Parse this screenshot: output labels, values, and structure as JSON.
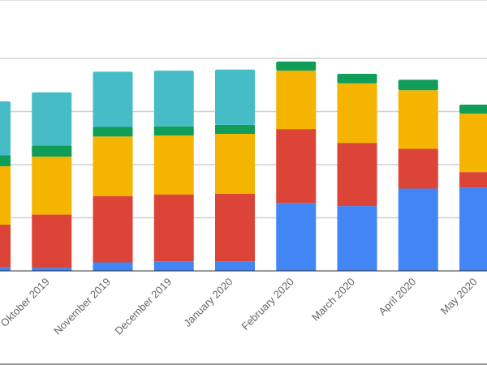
{
  "chart_data": {
    "type": "bar",
    "stacked": true,
    "title": "",
    "xlabel": "",
    "ylabel": "",
    "ylim": [
      0,
      4
    ],
    "grid": true,
    "legend": "none visible",
    "categories": [
      "",
      "Oktober 2019",
      "November 2019",
      "December 2019",
      "January 2020",
      "February 2020",
      "March 2020",
      "April 2020",
      "May 2020"
    ],
    "series": [
      {
        "color": "#4285f4",
        "values": [
          0.07,
          0.06,
          0.16,
          0.18,
          0.18,
          1.28,
          1.22,
          1.55,
          1.57
        ]
      },
      {
        "color": "#db4437",
        "values": [
          0.8,
          1.0,
          1.25,
          1.26,
          1.27,
          1.39,
          1.19,
          0.75,
          0.29
        ]
      },
      {
        "color": "#f4b400",
        "values": [
          1.1,
          1.09,
          1.12,
          1.11,
          1.13,
          1.1,
          1.12,
          1.1,
          1.1
        ]
      },
      {
        "color": "#0f9d58",
        "values": [
          0.21,
          0.21,
          0.18,
          0.17,
          0.17,
          0.17,
          0.18,
          0.2,
          0.17
        ]
      },
      {
        "color": "#46bdc6",
        "values": [
          1.01,
          1.0,
          1.04,
          1.05,
          1.04,
          0,
          0,
          0,
          0
        ]
      }
    ]
  }
}
